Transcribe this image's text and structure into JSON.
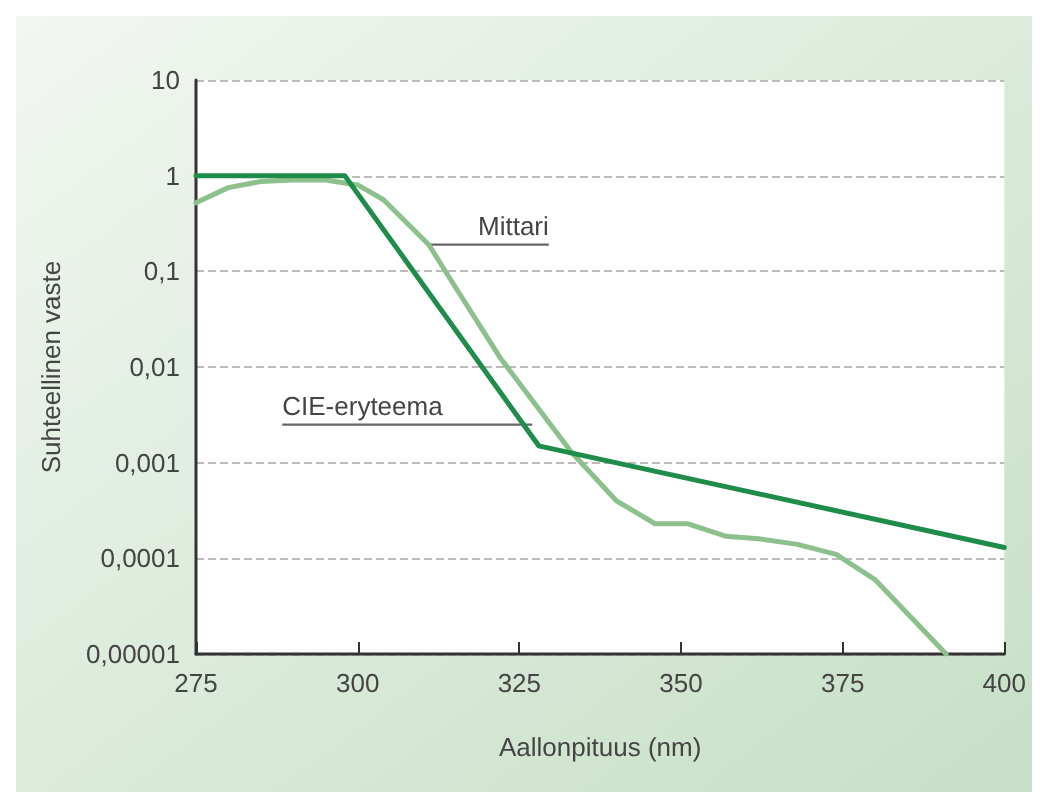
{
  "chart_data": {
    "type": "line",
    "xlabel": "Aallonpituus (nm)",
    "ylabel": "Suhteellinen vaste",
    "log": "y",
    "grid": "y",
    "marker": "none",
    "line_style": "solid",
    "xlim": [
      275,
      400
    ],
    "xticks": [
      275,
      300,
      325,
      350,
      375,
      400
    ],
    "ylim": [
      1e-05,
      10
    ],
    "yticks": [
      {
        "value": 1e-05,
        "label": "0,00001"
      },
      {
        "value": 0.0001,
        "label": "0,0001"
      },
      {
        "value": 0.001,
        "label": "0,001"
      },
      {
        "value": 0.01,
        "label": "0,01"
      },
      {
        "value": 0.1,
        "label": "0,1"
      },
      {
        "value": 1,
        "label": "1"
      },
      {
        "value": 10,
        "label": "10"
      }
    ],
    "series": [
      {
        "color": "#8cc08c",
        "x": [
          275,
          280,
          285,
          290,
          295,
          300,
          304,
          311,
          314,
          322,
          333,
          340,
          346,
          351,
          357,
          362,
          368,
          374,
          380,
          391
        ],
        "values": [
          0.52,
          0.75,
          0.87,
          0.9,
          0.9,
          0.8,
          0.56,
          0.19,
          0.09,
          0.0126,
          0.0013,
          0.0004,
          0.00023,
          0.00023,
          0.00017,
          0.00016,
          0.00014,
          0.00011,
          6e-05,
          1e-05
        ]
      },
      {
        "color": "#1e8c4a",
        "x": [
          275,
          298,
          328,
          400
        ],
        "values": [
          1,
          1,
          0.0015,
          0.00013
        ]
      }
    ],
    "annotations": [
      {
        "text": "Mittari",
        "x": 311,
        "y": 0.19
      },
      {
        "text": "CIE-eryteema",
        "x": 327,
        "y": 0.0025
      }
    ]
  }
}
